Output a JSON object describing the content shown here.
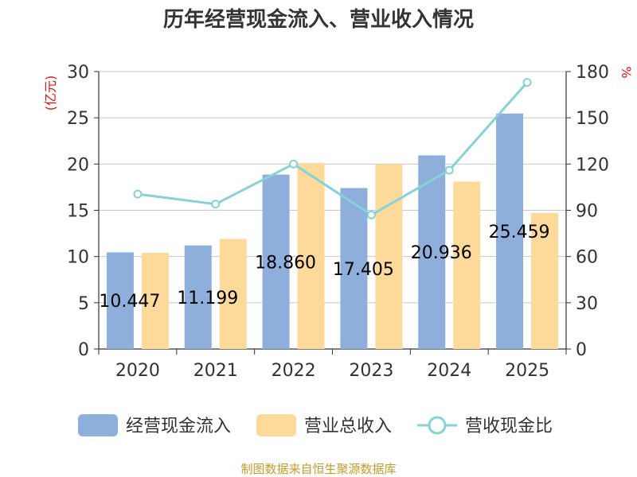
{
  "chart_data": {
    "type": "bar",
    "title": "历年经营现金流入、营业收入情况",
    "categories": [
      "2020",
      "2021",
      "2022",
      "2023",
      "2024",
      "2025"
    ],
    "series": [
      {
        "name": "经营现金流入",
        "type": "bar",
        "axis": "left",
        "color": "#8eaedb",
        "values": [
          10.447,
          11.199,
          18.86,
          17.405,
          20.936,
          25.459
        ],
        "labels": [
          "10.447",
          "11.199",
          "18.860",
          "17.405",
          "20.936",
          "25.459"
        ]
      },
      {
        "name": "营业总收入",
        "type": "bar",
        "axis": "left",
        "color": "#fdd99a",
        "values": [
          10.4,
          11.9,
          20.1,
          20.0,
          18.1,
          14.7
        ]
      },
      {
        "name": "营收现金比",
        "type": "line",
        "axis": "right",
        "color": "#86d2d6",
        "values": [
          100.5,
          94,
          120,
          87,
          116,
          173
        ]
      }
    ],
    "y_left": {
      "unit": "(亿元)",
      "ylim": [
        0,
        30
      ],
      "ticks": [
        0,
        5,
        10,
        15,
        20,
        25,
        30
      ]
    },
    "y_right": {
      "unit": "%",
      "ylim": [
        0,
        180
      ],
      "ticks": [
        0,
        30,
        60,
        90,
        120,
        150,
        180
      ]
    },
    "grid": true,
    "legend": "bottom",
    "source": "制图数据来自恒生聚源数据库"
  }
}
